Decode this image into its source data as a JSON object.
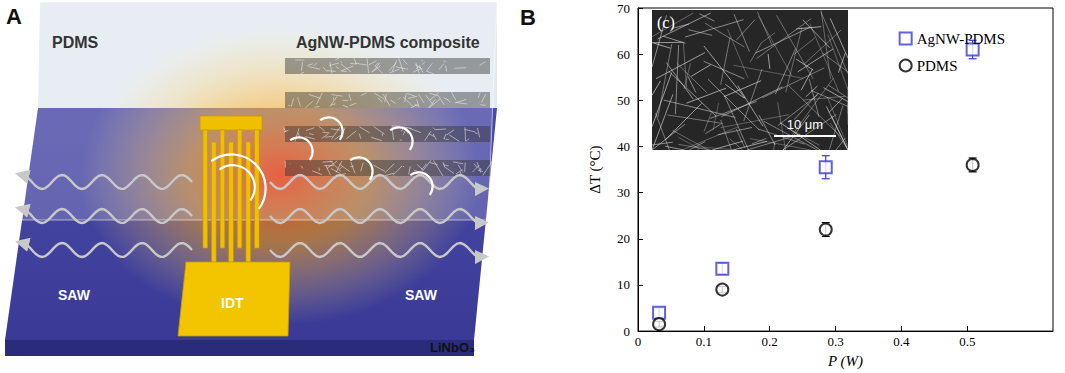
{
  "diagram": {
    "panel_label": "A",
    "labels": {
      "pdms": "PDMS",
      "composite": "AgNW-PDMS composite",
      "idt": "IDT",
      "saw_left": "SAW",
      "saw_right": "SAW",
      "substrate": "LiNbO₃"
    }
  },
  "chart_data": {
    "type": "scatter",
    "panel_label": "B",
    "x_label": "P (W)",
    "y_label": "ΔT (°C)",
    "xlim": [
      0,
      0.63
    ],
    "xticks": [
      0,
      0.1,
      0.2,
      0.3,
      0.4,
      0.5
    ],
    "ylim": [
      0,
      70
    ],
    "yticks": [
      0,
      10,
      20,
      30,
      40,
      50,
      60,
      70
    ],
    "grid": false,
    "legend": "upper right",
    "annotations": {
      "inset": "(c)",
      "scale_bar": "10 μm"
    },
    "series": [
      {
        "name": "AgNW-PDMS",
        "color": "#3a3ad0",
        "marker": "square",
        "x": [
          0.032,
          0.128,
          0.285,
          0.508
        ],
        "values": [
          4.0,
          13.5,
          35.5,
          61.0
        ],
        "error": [
          1.0,
          1.2,
          2.5,
          2.0
        ]
      },
      {
        "name": "PDMS",
        "color": "#000000",
        "marker": "circle",
        "x": [
          0.032,
          0.128,
          0.285,
          0.508
        ],
        "values": [
          1.5,
          9.0,
          22.0,
          36.0
        ],
        "error": [
          0.6,
          0.7,
          1.5,
          1.5
        ]
      }
    ]
  }
}
